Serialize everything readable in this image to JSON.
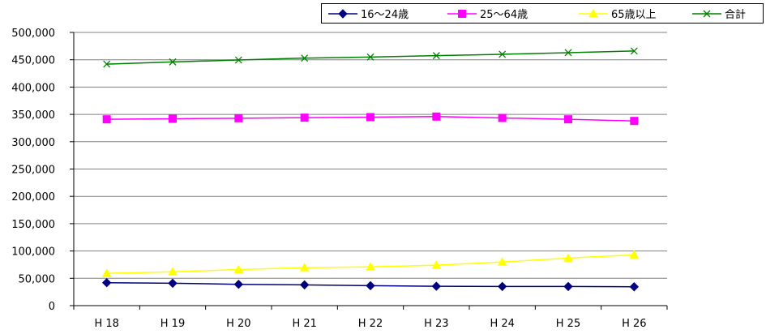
{
  "chart_data": {
    "type": "line",
    "categories": [
      "H 18",
      "H 19",
      "H 20",
      "H 21",
      "H 22",
      "H 23",
      "H 24",
      "H 25",
      "H 26"
    ],
    "ylim": [
      0,
      500000
    ],
    "yticks": [
      0,
      50000,
      100000,
      150000,
      200000,
      250000,
      300000,
      350000,
      400000,
      450000,
      500000
    ],
    "ytick_labels": [
      "0",
      "50,000",
      "100,000",
      "150,000",
      "200,000",
      "250,000",
      "300,000",
      "350,000",
      "400,000",
      "450,000",
      "500,000"
    ],
    "grid": true,
    "legend_position": "top",
    "series": [
      {
        "name": "16〜24歳",
        "color": "#000080",
        "marker": "diamond",
        "values": [
          42000,
          41000,
          39000,
          38000,
          36500,
          35500,
          35000,
          35000,
          34500
        ]
      },
      {
        "name": "25〜64歳",
        "color": "#ff00ff",
        "marker": "square",
        "values": [
          341000,
          342000,
          343000,
          344000,
          345000,
          346000,
          343500,
          341000,
          338000
        ]
      },
      {
        "name": "65歳以上",
        "color": "#ffff00",
        "marker": "triangle",
        "values": [
          59000,
          62000,
          66000,
          69500,
          71000,
          74000,
          80000,
          87000,
          93000
        ]
      },
      {
        "name": "合計",
        "color": "#008000",
        "marker": "x",
        "values": [
          442000,
          446000,
          449500,
          453000,
          455000,
          457500,
          460000,
          463000,
          466000
        ]
      }
    ]
  }
}
